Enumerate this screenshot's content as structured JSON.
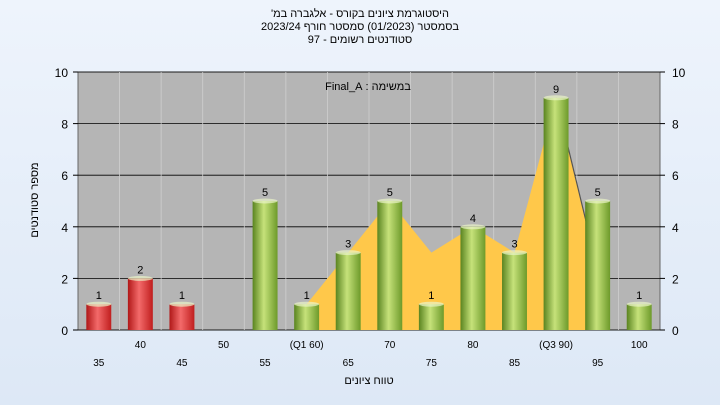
{
  "titles": {
    "line1": "היסטוגרמת ציונים בקורס - אלגברה במ'",
    "line2": "בסמסטר  (01/2023)  סמסטר חורף  2023/24",
    "line3": "סטודנטים רשומים - 97"
  },
  "chart_data": {
    "type": "bar",
    "annotation": "במשימה : Final_A",
    "xlabel": "טווח ציונים",
    "ylabel": "מספר סטודנטים",
    "ylim": [
      0,
      10
    ],
    "yticks": [
      0,
      2,
      4,
      6,
      8,
      10
    ],
    "grid": true,
    "categories": [
      "35",
      "40",
      "45",
      "50",
      "55",
      "(Q1 60)",
      "65",
      "70",
      "75",
      "80",
      "85",
      "(Q3 90)",
      "95",
      "100"
    ],
    "values": [
      1,
      2,
      1,
      null,
      5,
      1,
      3,
      5,
      1,
      4,
      3,
      9,
      5,
      1
    ],
    "bar_colors": [
      "#d42a2a",
      "#d42a2a",
      "#d42a2a",
      "#d42a2a",
      "#7fae34",
      "#7fae34",
      "#7fae34",
      "#7fae34",
      "#7fae34",
      "#7fae34",
      "#7fae34",
      "#7fae34",
      "#7fae34",
      "#7fae34"
    ],
    "box": {
      "q1": 60,
      "q3": 90,
      "color": "#ffc84a"
    }
  }
}
